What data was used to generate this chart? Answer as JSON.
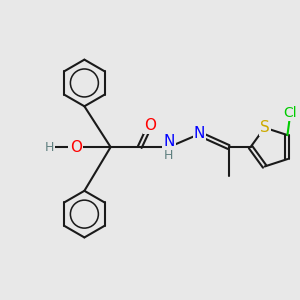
{
  "background_color": "#e8e8e8",
  "atom_colors": {
    "O": "#ff0000",
    "N": "#0000ff",
    "S": "#ccaa00",
    "Cl": "#00cc00",
    "H_gray": "#608080"
  },
  "bond_color": "#1a1a1a",
  "bond_width": 1.5,
  "figsize": [
    3.0,
    3.0
  ],
  "dpi": 100
}
